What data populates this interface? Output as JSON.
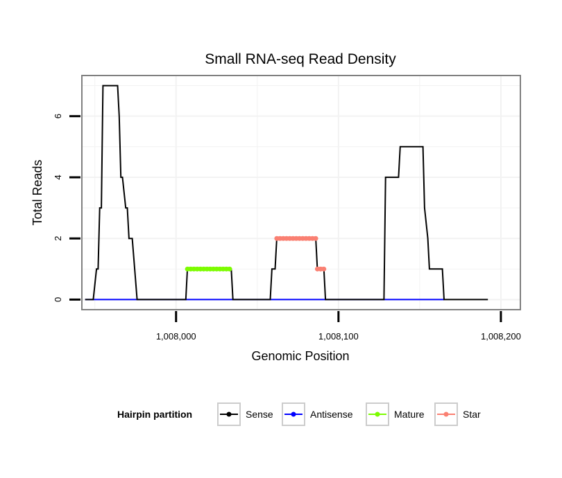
{
  "chart_data": {
    "type": "line",
    "title": "Small RNA-seq Read Density",
    "xlabel": "Genomic Position",
    "ylabel": "Total Reads",
    "xlim": [
      1007942,
      1008212
    ],
    "ylim": [
      -0.33,
      7.33
    ],
    "x_ticks": [
      {
        "value": 1008000,
        "label": "1,008,000"
      },
      {
        "value": 1008100,
        "label": "1,008,100"
      },
      {
        "value": 1008200,
        "label": "1,008,200"
      }
    ],
    "y_ticks": [
      {
        "value": 0,
        "label": "0"
      },
      {
        "value": 2,
        "label": "2"
      },
      {
        "value": 4,
        "label": "4"
      },
      {
        "value": 6,
        "label": "6"
      }
    ],
    "grid": true,
    "legend": {
      "title": "Hairpin partition",
      "position": "bottom",
      "entries": [
        {
          "name": "Sense",
          "color": "#000000"
        },
        {
          "name": "Antisense",
          "color": "#0000ff"
        },
        {
          "name": "Mature",
          "color": "#7cfc00"
        },
        {
          "name": "Star",
          "color": "#fa8072"
        }
      ]
    },
    "series": [
      {
        "name": "Sense",
        "color": "#000000",
        "x": [
          1007944,
          1007949,
          1007951,
          1007952,
          1007953,
          1007954,
          1007955,
          1007964,
          1007965,
          1007966,
          1007967,
          1007969,
          1007970,
          1007971,
          1007972,
          1007973,
          1007976,
          1007977,
          1007986,
          1008006,
          1008007,
          1008009,
          1008034,
          1008035,
          1008058,
          1008059,
          1008061,
          1008062,
          1008067,
          1008086,
          1008087,
          1008091,
          1008092,
          1008128,
          1008129,
          1008137,
          1008138,
          1008152,
          1008153,
          1008155,
          1008156,
          1008157,
          1008164,
          1008165,
          1008192
        ],
        "values": [
          0,
          0,
          1,
          1,
          3,
          3,
          7,
          7,
          6,
          4,
          4,
          3,
          3,
          2,
          2,
          2,
          0,
          0,
          0,
          0,
          1,
          1,
          1,
          0,
          0,
          1,
          1,
          2,
          2,
          2,
          1,
          1,
          0,
          0,
          4,
          4,
          5,
          5,
          3,
          2,
          1,
          1,
          1,
          0,
          0
        ]
      },
      {
        "name": "Antisense",
        "color": "#0000ff",
        "x": [
          1007944,
          1007976,
          1008006,
          1008034,
          1008058,
          1008091,
          1008128,
          1008165
        ],
        "values": [
          0,
          0,
          0,
          0,
          0,
          0,
          0,
          0
        ]
      },
      {
        "name": "Mature",
        "color": "#7cfc00",
        "x": [
          1008007,
          1008009,
          1008011,
          1008013,
          1008015,
          1008017,
          1008019,
          1008021,
          1008023,
          1008025,
          1008027,
          1008029,
          1008031,
          1008033
        ],
        "values": [
          1,
          1,
          1,
          1,
          1,
          1,
          1,
          1,
          1,
          1,
          1,
          1,
          1,
          1
        ]
      },
      {
        "name": "Star",
        "color": "#fa8072",
        "x": [
          1008062,
          1008064,
          1008066,
          1008068,
          1008070,
          1008072,
          1008074,
          1008076,
          1008078,
          1008080,
          1008082,
          1008084,
          1008086,
          1008087,
          1008089,
          1008091
        ],
        "values": [
          2,
          2,
          2,
          2,
          2,
          2,
          2,
          2,
          2,
          2,
          2,
          2,
          2,
          1,
          1,
          1
        ]
      }
    ]
  }
}
